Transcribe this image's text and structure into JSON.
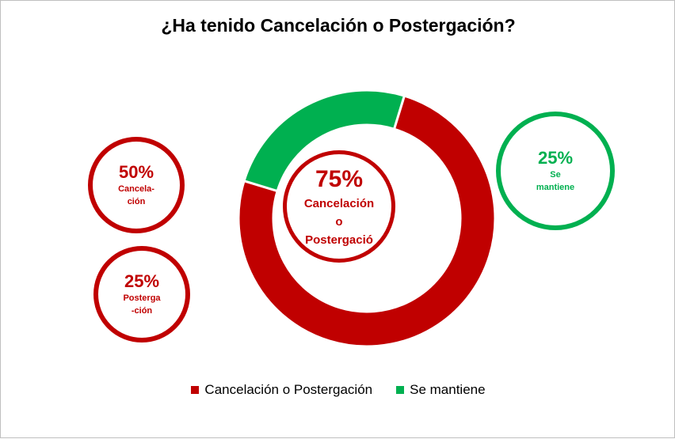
{
  "chart_data": {
    "type": "pie",
    "title": "¿Ha tenido Cancelación o Postergación?",
    "series": [
      {
        "name": "Cancelación o Postergación",
        "value": 75,
        "color": "#c00000"
      },
      {
        "name": "Se mantiene",
        "value": 25,
        "color": "#00b050"
      }
    ],
    "center_label": {
      "value": "75%",
      "text_lines": [
        "Cancelación",
        "o",
        "Postergació"
      ]
    },
    "callouts": [
      {
        "id": "cancelacion",
        "value": "50%",
        "text_lines": [
          "Cancela-",
          "ción"
        ],
        "color": "#c00000"
      },
      {
        "id": "postergacion",
        "value": "25%",
        "text_lines": [
          "Posterga",
          "-ción"
        ],
        "color": "#c00000"
      },
      {
        "id": "se-mantiene",
        "value": "25%",
        "text_lines": [
          "Se",
          "mantiene"
        ],
        "color": "#00b050"
      }
    ],
    "legend": {
      "position": "bottom"
    }
  }
}
